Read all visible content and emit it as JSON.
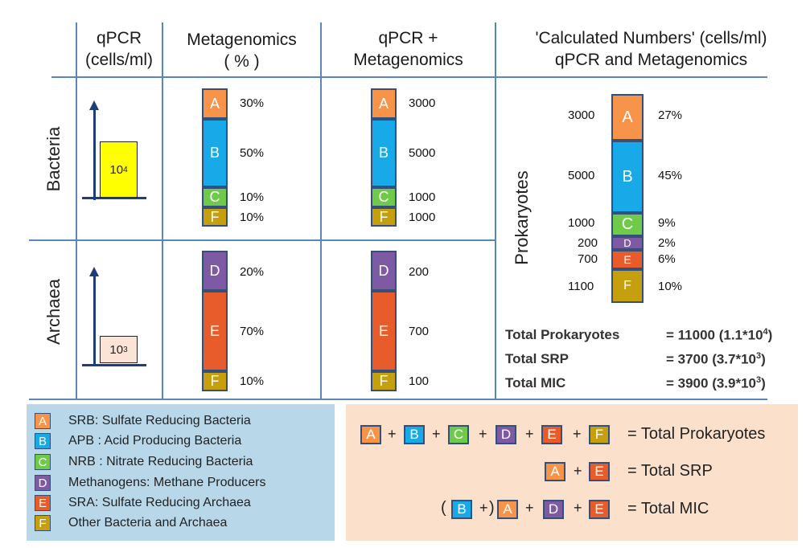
{
  "colors": {
    "A": "#f7944a",
    "B": "#17a9e8",
    "C": "#6fca4a",
    "D": "#7d5aa3",
    "E": "#e85c2b",
    "F": "#c59f0e",
    "bacteria_box": "#ffff00",
    "archaea_box": "#fbe4d5"
  },
  "headers": {
    "qpcr": "qPCR\n(cells/ml)",
    "metagenomics": "Metagenomics\n( % )",
    "qpcr_meta": "qPCR +\nMetagenomics",
    "calculated": "'Calculated Numbers'  (cells/ml)\nqPCR and Metagenomics"
  },
  "rows": {
    "bacteria": "Bacteria",
    "archaea": "Archaea",
    "prokaryotes": "Prokaryotes"
  },
  "qpcr": {
    "bacteria_base": "10",
    "bacteria_exp": "4",
    "archaea_base": "10",
    "archaea_exp": "3"
  },
  "bacteria_segments": [
    {
      "letter": "A",
      "pct": "30%",
      "num": "3000"
    },
    {
      "letter": "B",
      "pct": "50%",
      "num": "5000"
    },
    {
      "letter": "C",
      "pct": "10%",
      "num": "1000"
    },
    {
      "letter": "F",
      "pct": "10%",
      "num": "1000"
    }
  ],
  "archaea_segments": [
    {
      "letter": "D",
      "pct": "20%",
      "num": "200"
    },
    {
      "letter": "E",
      "pct": "70%",
      "num": "700"
    },
    {
      "letter": "F",
      "pct": "10%",
      "num": "100"
    }
  ],
  "prokaryote_segments": [
    {
      "letter": "A",
      "num": "3000",
      "pct": "27%"
    },
    {
      "letter": "B",
      "num": "5000",
      "pct": "45%"
    },
    {
      "letter": "C",
      "num": "1000",
      "pct": "9%"
    },
    {
      "letter": "D",
      "num": "200",
      "pct": "2%"
    },
    {
      "letter": "E",
      "num": "700",
      "pct": "6%"
    },
    {
      "letter": "F",
      "num": "1100",
      "pct": "10%"
    }
  ],
  "totals": [
    {
      "label": "Total Prokaryotes",
      "value": "= 11000 (1.1*10",
      "exp": "4",
      "close": ")"
    },
    {
      "label": "Total SRP",
      "value": "= 3700 (3.7*10",
      "exp": "3",
      "close": ")"
    },
    {
      "label": "Total MIC",
      "value": "= 3900 (3.9*10",
      "exp": "3",
      "close": ")"
    }
  ],
  "legend": [
    {
      "letter": "A",
      "text": "SRB: Sulfate Reducing Bacteria"
    },
    {
      "letter": "B",
      "text": "APB : Acid Producing Bacteria"
    },
    {
      "letter": "C",
      "text": "NRB : Nitrate Reducing Bacteria"
    },
    {
      "letter": "D",
      "text": "Methanogens: Methane Producers"
    },
    {
      "letter": "E",
      "text": "SRA: Sulfate Reducing Archaea"
    },
    {
      "letter": "F",
      "text": "Other Bacteria and Archaea"
    }
  ],
  "equations": {
    "plus": "+",
    "eq1_result": "= Total Prokaryotes",
    "eq2_result": "= Total SRP",
    "eq3_result": "= Total MIC",
    "open_paren": "(",
    "close_paren": ")"
  }
}
